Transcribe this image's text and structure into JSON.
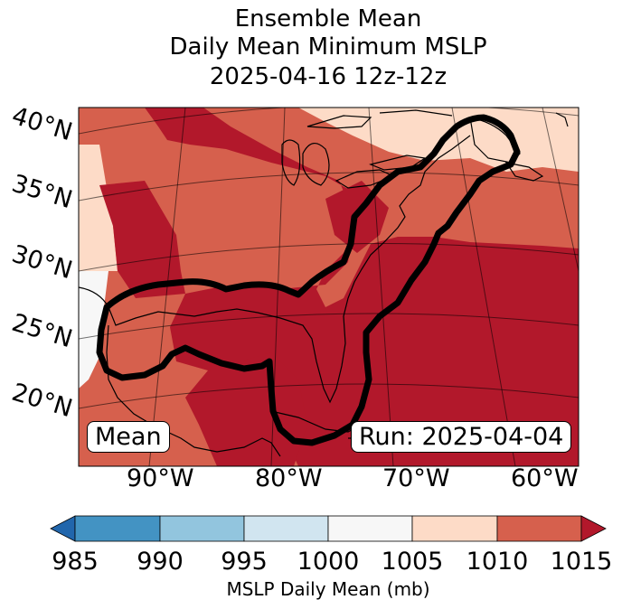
{
  "title": {
    "line1": "Ensemble Mean",
    "line2": "Daily Mean Minimum MSLP",
    "line3": "2025-04-16 12z-12z"
  },
  "map": {
    "lat_labels": [
      "40°N",
      "35°N",
      "30°N",
      "25°N",
      "20°N"
    ],
    "lon_labels": [
      "90°W",
      "80°W",
      "70°W",
      "60°W"
    ],
    "left_box": "Mean",
    "right_box": "Run: 2025-04-04",
    "field_colors": {
      "lt1000": "#f7f7f7",
      "b1005": "#fddbc7",
      "b1010": "#d6604d",
      "ge1015": "#b2182b"
    },
    "coastline_color": "#000000",
    "contour_color": "#000000"
  },
  "colorbar": {
    "ticks": [
      "985",
      "990",
      "995",
      "1000",
      "1005",
      "1010",
      "1015"
    ],
    "label": "MSLP Daily Mean (mb)",
    "colors": [
      "#2166ac",
      "#4393c3",
      "#92c5de",
      "#d1e5f0",
      "#f7f7f7",
      "#fddbc7",
      "#d6604d",
      "#b2182b"
    ]
  }
}
